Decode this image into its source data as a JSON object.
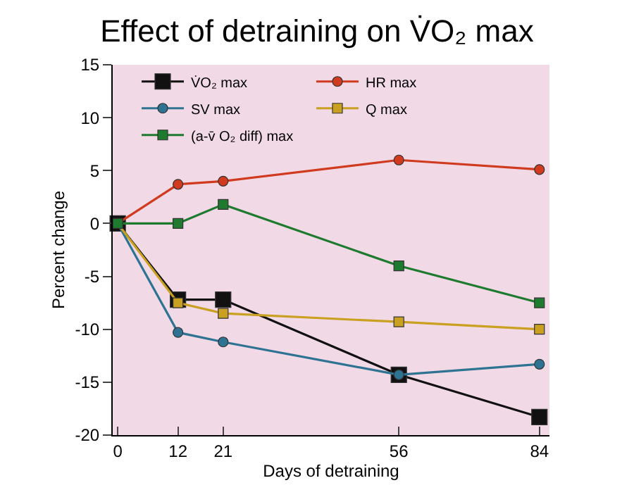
{
  "chart_data": {
    "type": "line",
    "title": "Effect of detraining on V̇O₂ max",
    "xlabel": "Days of detraining",
    "ylabel": "Percent change",
    "x": [
      0,
      12,
      21,
      56,
      84
    ],
    "xlim": [
      -1,
      86
    ],
    "xticks": [
      0,
      12,
      21,
      56,
      84
    ],
    "ylim": [
      -20,
      15
    ],
    "yticks": [
      -20,
      -15,
      -10,
      -5,
      0,
      5,
      10,
      15
    ],
    "grid": false,
    "legend": "top left",
    "series": [
      {
        "name": "V̇O₂ max",
        "color": "#111111",
        "marker": "square",
        "values": [
          0,
          -7.2,
          -7.2,
          -14.3,
          -18.3
        ]
      },
      {
        "name": "HR max",
        "color": "#d03a1e",
        "marker": "circle",
        "values": [
          0,
          3.7,
          4,
          6,
          5.1
        ]
      },
      {
        "name": "SV max",
        "color": "#2f7393",
        "marker": "circle",
        "values": [
          0,
          -10.3,
          -11.2,
          -14.3,
          -13.3
        ]
      },
      {
        "name": "Q max",
        "color": "#c9a020",
        "marker": "square",
        "values": [
          0,
          -7.5,
          -8.5,
          -9.3,
          -10
        ]
      },
      {
        "name": "(a-v̄ O₂ diff) max",
        "color": "#1e7a2e",
        "marker": "square",
        "values": [
          0,
          0,
          1.8,
          -4,
          -7.5
        ]
      }
    ]
  }
}
